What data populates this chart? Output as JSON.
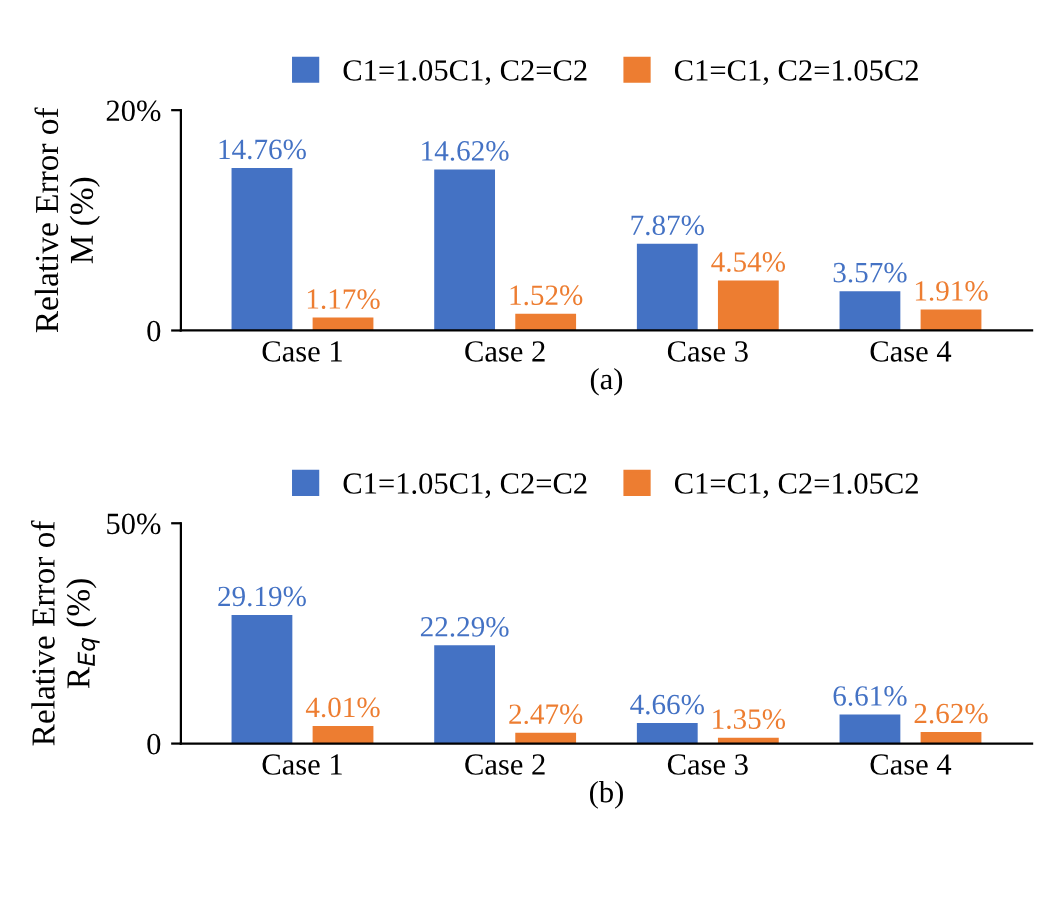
{
  "chart_data": [
    {
      "type": "bar",
      "categories": [
        "Case 1",
        "Case 2",
        "Case 3",
        "Case 4"
      ],
      "xlabel": "(a)",
      "ylabel": "Relative Error of\nM (%)",
      "ylim": [
        0,
        20
      ],
      "yticks": [
        0,
        {
          "value": 20,
          "label": "20%"
        }
      ],
      "legend": "top",
      "grid": false,
      "series": [
        {
          "name": "C1=1.05C1, C2=C2",
          "color": "#4472c4",
          "values": [
            14.76,
            14.62,
            7.87,
            3.57
          ],
          "value_labels": [
            "14.76%",
            "14.62%",
            "7.87%",
            "3.57%"
          ]
        },
        {
          "name": "C1=C1, C2=1.05C2",
          "color": "#ed7d31",
          "values": [
            1.17,
            1.52,
            4.54,
            1.91
          ],
          "value_labels": [
            "1.17%",
            "1.52%",
            "4.54%",
            "1.91%"
          ]
        }
      ]
    },
    {
      "type": "bar",
      "categories": [
        "Case 1",
        "Case 2",
        "Case 3",
        "Case 4"
      ],
      "xlabel": "(b)",
      "ylabel": "Relative Error of\nR$_{Eq}$ (%)",
      "ylim": [
        0,
        50
      ],
      "yticks": [
        0,
        {
          "value": 50,
          "label": "50%"
        }
      ],
      "legend": "top",
      "grid": false,
      "series": [
        {
          "name": "C1=1.05C1, C2=C2",
          "color": "#4472c4",
          "values": [
            29.19,
            22.29,
            4.66,
            6.61
          ],
          "value_labels": [
            "29.19%",
            "22.29%",
            "4.66%",
            "6.61%"
          ]
        },
        {
          "name": "C1=C1, C2=1.05C2",
          "color": "#ed7d31",
          "values": [
            4.01,
            2.47,
            1.35,
            2.62
          ],
          "value_labels": [
            "4.01%",
            "2.47%",
            "1.35%",
            "2.62%"
          ]
        }
      ]
    }
  ]
}
